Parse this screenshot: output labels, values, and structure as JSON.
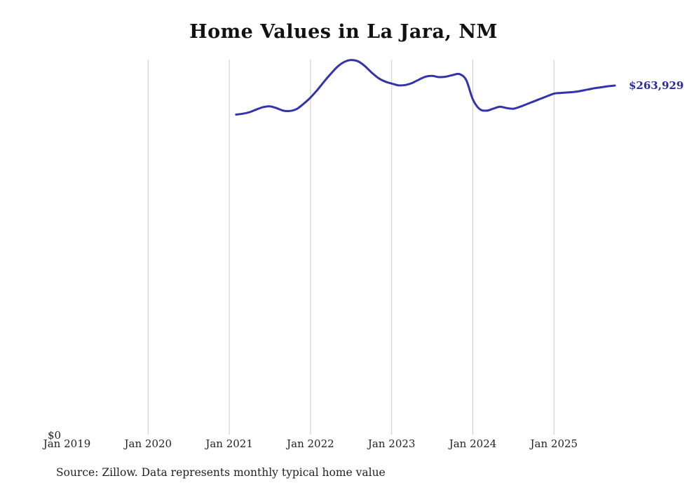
{
  "title": "Home Values in La Jara, NM",
  "source_note": "Source: Zillow. Data represents monthly typical home value",
  "end_label": "$263,929",
  "y_zero_label": "$0",
  "colors": {
    "line": "#3333aa",
    "end_label": "#2a2aa0",
    "grid": "#cccccc",
    "text": "#222222"
  },
  "chart_data": {
    "type": "line",
    "title": "Home Values in La Jara, NM",
    "series_name": "Monthly typical home value",
    "frequency": "monthly",
    "start": "2021-02",
    "end": "2025-10",
    "values": [
      242000,
      242600,
      243800,
      245800,
      247600,
      248200,
      246800,
      244900,
      244700,
      246300,
      250200,
      254800,
      260500,
      266800,
      272800,
      278200,
      281800,
      283200,
      282300,
      278800,
      273900,
      269700,
      267000,
      265400,
      264100,
      264300,
      265800,
      268300,
      270600,
      271200,
      270300,
      270600,
      271800,
      272600,
      268200,
      253500,
      246200,
      244900,
      246400,
      247900,
      246900,
      246400,
      247900,
      249900,
      251900,
      253900,
      255900,
      257800,
      258300,
      258700,
      259100,
      259900,
      260900,
      261900,
      262600,
      263400,
      263929
    ],
    "final_value": 263929,
    "final_value_label": "$263,929",
    "x_axis": {
      "tick_labels": [
        "Jan 2019",
        "Jan 2020",
        "Jan 2021",
        "Jan 2022",
        "Jan 2023",
        "Jan 2024",
        "Jan 2025"
      ],
      "tick_years": [
        2019,
        2020,
        2021,
        2022,
        2023,
        2024,
        2025
      ],
      "gridline_years": [
        2020,
        2021,
        2022,
        2023,
        2024,
        2025
      ]
    },
    "y_axis": {
      "min": 0,
      "min_label": "$0",
      "grid": false
    },
    "legend": "none"
  }
}
